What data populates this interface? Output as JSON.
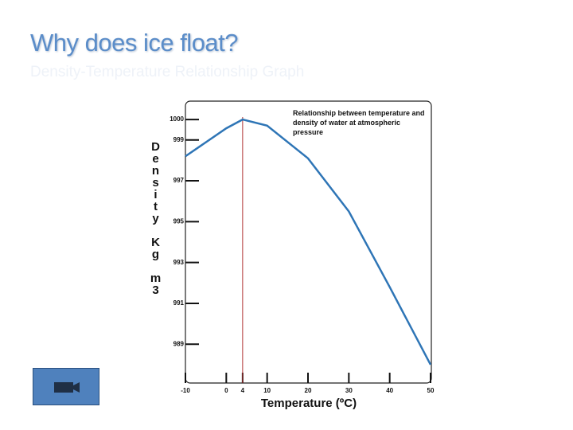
{
  "slide": {
    "title": "Why does ice float?",
    "subtitle": "Density-Temperature Relationship Graph"
  },
  "chart_data": {
    "type": "line",
    "title": "Relationship between temperature and density of water at atmospheric pressure",
    "x_label": "Temperature (ºC)",
    "y_label": "Density Kg m3",
    "x": [
      -10,
      0,
      4,
      10,
      20,
      30,
      40,
      50
    ],
    "series": [
      {
        "color": "#2e75b6",
        "values": [
          998.2,
          999.57,
          1000,
          999.7,
          998.1,
          995.5,
          991.8,
          988.0
        ]
      }
    ],
    "xlim": [
      -10,
      50
    ],
    "xticks": [
      -10,
      0,
      4,
      10,
      20,
      30,
      40,
      50
    ],
    "ylim": [
      987.1,
      1000.9
    ],
    "yticks": [
      989,
      991,
      993,
      995,
      997,
      999,
      1000
    ],
    "vline": 4,
    "vline_color": "#b03030"
  }
}
